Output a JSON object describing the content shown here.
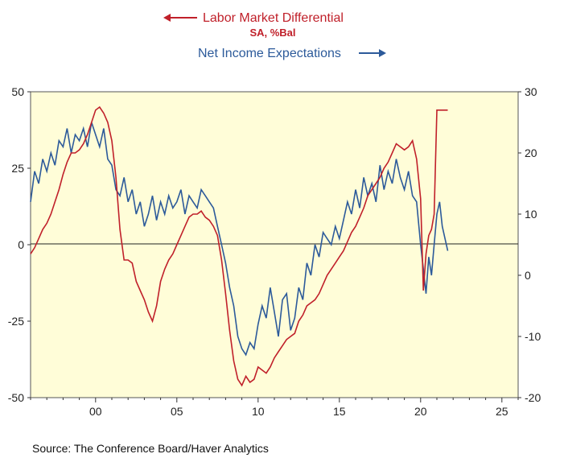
{
  "chart_data": {
    "type": "line",
    "title": "Labor Market Differential",
    "subtitle": "SA, %Bal",
    "legend": [
      {
        "name": "Labor Market Differential",
        "axis": "left",
        "arrow": "left"
      },
      {
        "name": "Net Income Expectations",
        "axis": "right",
        "arrow": "right"
      }
    ],
    "x_tick_labels": [
      "00",
      "05",
      "10",
      "15",
      "20",
      "25"
    ],
    "x_ticks": [
      2000,
      2005,
      2010,
      2015,
      2020,
      2025
    ],
    "xlim": [
      1996.0,
      2026.0
    ],
    "y_left": {
      "ticks": [
        50,
        25,
        0,
        -25,
        -50
      ],
      "lim": [
        -50,
        50
      ]
    },
    "y_right": {
      "ticks": [
        30,
        20,
        10,
        0,
        -10,
        -20
      ],
      "lim": [
        -20,
        30
      ]
    },
    "grid": false,
    "background": "#fffdd8",
    "colors": {
      "labor": "#c0202a",
      "income": "#2c5a9a"
    },
    "series": [
      {
        "name": "Labor Market Differential",
        "axis": "left",
        "x": [
          1996.0,
          1996.25,
          1996.5,
          1996.75,
          1997.0,
          1997.25,
          1997.5,
          1997.75,
          1998.0,
          1998.25,
          1998.5,
          1998.75,
          1999.0,
          1999.25,
          1999.5,
          1999.75,
          2000.0,
          2000.25,
          2000.5,
          2000.75,
          2001.0,
          2001.25,
          2001.5,
          2001.75,
          2002.0,
          2002.25,
          2002.5,
          2002.75,
          2003.0,
          2003.25,
          2003.5,
          2003.75,
          2004.0,
          2004.25,
          2004.5,
          2004.75,
          2005.0,
          2005.25,
          2005.5,
          2005.75,
          2006.0,
          2006.25,
          2006.5,
          2006.75,
          2007.0,
          2007.25,
          2007.5,
          2007.75,
          2008.0,
          2008.25,
          2008.5,
          2008.75,
          2009.0,
          2009.25,
          2009.5,
          2009.75,
          2010.0,
          2010.25,
          2010.5,
          2010.75,
          2011.0,
          2011.25,
          2011.5,
          2011.75,
          2012.0,
          2012.25,
          2012.5,
          2012.75,
          2013.0,
          2013.25,
          2013.5,
          2013.75,
          2014.0,
          2014.25,
          2014.5,
          2014.75,
          2015.0,
          2015.25,
          2015.5,
          2015.75,
          2016.0,
          2016.25,
          2016.5,
          2016.75,
          2017.0,
          2017.25,
          2017.5,
          2017.75,
          2018.0,
          2018.25,
          2018.5,
          2018.75,
          2019.0,
          2019.25,
          2019.5,
          2019.75,
          2020.0,
          2020.17,
          2020.33,
          2020.5,
          2020.67,
          2020.83,
          2021.0,
          2021.17,
          2021.33,
          2021.5,
          2021.67
        ],
        "values": [
          -3,
          -1,
          2,
          5,
          7,
          10,
          14,
          18,
          23,
          27,
          30,
          30,
          31,
          33,
          36,
          40,
          44,
          45,
          43,
          40,
          34,
          22,
          5,
          -5,
          -5,
          -6,
          -12,
          -15,
          -18,
          -22,
          -25,
          -20,
          -12,
          -8,
          -5,
          -3,
          0,
          3,
          6,
          9,
          10,
          10,
          11,
          9,
          8,
          6,
          3,
          -5,
          -16,
          -28,
          -38,
          -44,
          -46,
          -43,
          -45,
          -44,
          -40,
          -41,
          -42,
          -40,
          -37,
          -35,
          -33,
          -31,
          -30,
          -29,
          -25,
          -23,
          -20,
          -19,
          -18,
          -16,
          -13,
          -10,
          -8,
          -6,
          -4,
          -2,
          1,
          4,
          6,
          9,
          12,
          16,
          18,
          20,
          22,
          25,
          27,
          30,
          33,
          32,
          31,
          32,
          34,
          28,
          15,
          -15,
          -3,
          3,
          5,
          10,
          44,
          44,
          44,
          44,
          44
        ]
      },
      {
        "name": "Net Income Expectations",
        "axis": "right",
        "x": [
          1996.0,
          1996.25,
          1996.5,
          1996.75,
          1997.0,
          1997.25,
          1997.5,
          1997.75,
          1998.0,
          1998.25,
          1998.5,
          1998.75,
          1999.0,
          1999.25,
          1999.5,
          1999.75,
          2000.0,
          2000.25,
          2000.5,
          2000.75,
          2001.0,
          2001.25,
          2001.5,
          2001.75,
          2002.0,
          2002.25,
          2002.5,
          2002.75,
          2003.0,
          2003.25,
          2003.5,
          2003.75,
          2004.0,
          2004.25,
          2004.5,
          2004.75,
          2005.0,
          2005.25,
          2005.5,
          2005.75,
          2006.0,
          2006.25,
          2006.5,
          2006.75,
          2007.0,
          2007.25,
          2007.5,
          2007.75,
          2008.0,
          2008.25,
          2008.5,
          2008.75,
          2009.0,
          2009.25,
          2009.5,
          2009.75,
          2010.0,
          2010.25,
          2010.5,
          2010.75,
          2011.0,
          2011.25,
          2011.5,
          2011.75,
          2012.0,
          2012.25,
          2012.5,
          2012.75,
          2013.0,
          2013.25,
          2013.5,
          2013.75,
          2014.0,
          2014.25,
          2014.5,
          2014.75,
          2015.0,
          2015.25,
          2015.5,
          2015.75,
          2016.0,
          2016.25,
          2016.5,
          2016.75,
          2017.0,
          2017.25,
          2017.5,
          2017.75,
          2018.0,
          2018.25,
          2018.5,
          2018.75,
          2019.0,
          2019.25,
          2019.5,
          2019.75,
          2020.0,
          2020.17,
          2020.33,
          2020.5,
          2020.67,
          2020.83,
          2021.0,
          2021.17,
          2021.33,
          2021.5,
          2021.67
        ],
        "values": [
          12,
          17,
          15,
          19,
          17,
          20,
          18,
          22,
          21,
          24,
          20,
          23,
          22,
          24,
          21,
          25,
          23,
          21,
          24,
          19,
          18,
          14,
          13,
          16,
          12,
          14,
          10,
          12,
          8,
          10,
          13,
          9,
          12,
          10,
          13,
          11,
          12,
          14,
          10,
          13,
          12,
          11,
          14,
          13,
          12,
          11,
          8,
          5,
          2,
          -2,
          -5,
          -10,
          -12,
          -13,
          -11,
          -12,
          -8,
          -5,
          -7,
          -2,
          -6,
          -10,
          -4,
          -3,
          -9,
          -7,
          -2,
          -4,
          2,
          0,
          5,
          3,
          7,
          6,
          5,
          8,
          6,
          9,
          12,
          10,
          14,
          11,
          16,
          13,
          15,
          12,
          18,
          14,
          17,
          15,
          19,
          16,
          14,
          17,
          13,
          12,
          5,
          1,
          -3,
          3,
          0,
          5,
          10,
          12,
          8,
          6,
          4
        ]
      }
    ]
  },
  "source": "Source:  The Conference Board/Haver Analytics"
}
